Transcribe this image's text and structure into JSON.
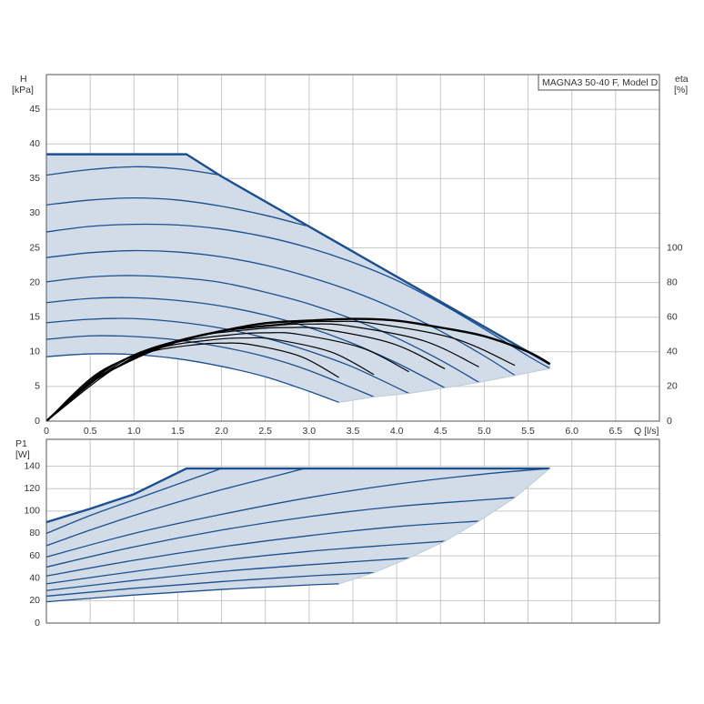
{
  "chart_data": [
    {
      "type": "line",
      "title": "MAGNA3 50-40 F, Model D",
      "y_label": "H",
      "y_unit": "[kPa]",
      "y2_label": "eta",
      "y2_unit": "[%]",
      "x_label": "Q [l/s]",
      "xlim": [
        0,
        7
      ],
      "xticks": [
        0,
        0.5,
        {
          "value": 1,
          "label": "1.0"
        },
        1.5,
        {
          "value": 2,
          "label": "2.0"
        },
        2.5,
        {
          "value": 3,
          "label": "3.0"
        },
        3.5,
        {
          "value": 4,
          "label": "4.0"
        },
        4.5,
        {
          "value": 5,
          "label": "5.0"
        },
        5.5,
        {
          "value": 6,
          "label": "6.0"
        },
        6.5
      ],
      "ylim": [
        0,
        50
      ],
      "yticks": [
        0,
        5,
        10,
        15,
        20,
        25,
        30,
        35,
        40,
        45
      ],
      "y2lim": [
        0,
        200
      ],
      "y2ticks": [
        0,
        20,
        40,
        60,
        80,
        100
      ],
      "grid": true,
      "fill": "#d2dce8",
      "series": [
        {
          "color": "#1b4f8f",
          "x": [
            0,
            1.6,
            2.0,
            5.75
          ],
          "values": [
            38.5,
            38.5,
            35.3,
            8.2
          ]
        },
        {
          "color": "#1b4f8f",
          "x": [
            0,
            0.5,
            1,
            1.5,
            1.99
          ],
          "values": [
            35.5,
            36.3,
            36.7,
            36.4,
            35.5
          ]
        },
        {
          "color": "#1b4f8f",
          "x": [
            0,
            0.5,
            1,
            1.5,
            2,
            2.5,
            2.96
          ],
          "values": [
            31.2,
            31.9,
            32.2,
            31.9,
            31.0,
            29.7,
            28.2
          ]
        },
        {
          "color": "#1b4f8f",
          "x": [
            0,
            0.5,
            1,
            1.5,
            2,
            2.5,
            3,
            3.5,
            4,
            4.5,
            5,
            5.5,
            5.75
          ],
          "values": [
            27.3,
            28.1,
            28.4,
            28.3,
            27.7,
            26.6,
            25.0,
            22.9,
            20.3,
            17.0,
            13.3,
            9.4,
            7.6
          ]
        },
        {
          "color": "#1b4f8f",
          "x": [
            0,
            0.5,
            1,
            1.5,
            2,
            2.5,
            3,
            3.5,
            4,
            4.5,
            5,
            5.35
          ],
          "values": [
            23.6,
            24.3,
            24.6,
            24.4,
            23.7,
            22.5,
            20.8,
            18.7,
            16.1,
            13.0,
            9.4,
            6.6
          ]
        },
        {
          "color": "#1b4f8f",
          "x": [
            0,
            0.5,
            1,
            1.5,
            2,
            2.5,
            3,
            3.5,
            4,
            4.5,
            4.94
          ],
          "values": [
            20.1,
            20.8,
            21.0,
            20.7,
            20.0,
            18.6,
            16.9,
            14.7,
            12.0,
            8.8,
            5.6
          ]
        },
        {
          "color": "#1b4f8f",
          "x": [
            0,
            0.5,
            1,
            1.5,
            2,
            2.5,
            3,
            3.5,
            4,
            4.55
          ],
          "values": [
            17.1,
            17.7,
            17.8,
            17.4,
            16.6,
            15.3,
            13.5,
            11.2,
            8.4,
            4.8
          ]
        },
        {
          "color": "#1b4f8f",
          "x": [
            0,
            0.5,
            1,
            1.5,
            2,
            2.5,
            3,
            3.5,
            4.14
          ],
          "values": [
            14.2,
            14.7,
            14.8,
            14.3,
            13.4,
            12.0,
            10.1,
            7.8,
            4.0
          ]
        },
        {
          "color": "#1b4f8f",
          "x": [
            0,
            0.5,
            1,
            1.5,
            2,
            2.5,
            3,
            3.74
          ],
          "values": [
            11.8,
            12.3,
            12.2,
            11.7,
            10.7,
            9.3,
            7.3,
            3.5
          ]
        },
        {
          "color": "#1b4f8f",
          "x": [
            0,
            0.5,
            1,
            1.5,
            2,
            2.5,
            3,
            3.34
          ],
          "values": [
            9.3,
            9.7,
            9.6,
            9.0,
            7.9,
            6.4,
            4.3,
            2.7
          ]
        },
        {
          "color": "#bccadb",
          "x": [
            3.34,
            3.74,
            4.14,
            4.55,
            4.94,
            5.35,
            5.75,
            5.75
          ],
          "values": [
            2.7,
            3.5,
            4.0,
            4.8,
            5.6,
            6.6,
            7.6,
            8.2
          ]
        },
        {
          "color": "#000000",
          "axis": "y2",
          "x": [
            0,
            0.5,
            1,
            1.5,
            2,
            2.5,
            3,
            3.5,
            4,
            4.5,
            5,
            5.5,
            5.75
          ],
          "values": [
            0,
            22,
            36,
            46,
            52,
            56.5,
            58,
            59,
            58,
            54,
            49,
            40,
            33
          ]
        },
        {
          "color": "#000000",
          "axis": "y2",
          "x": [
            0,
            0.93,
            1.86,
            2.79,
            3.26,
            3.72,
            4.65,
            5.35
          ],
          "values": [
            0,
            35.1,
            50.7,
            56.5,
            57.5,
            56.5,
            47.8,
            32.2
          ]
        },
        {
          "color": "#000000",
          "axis": "y2",
          "x": [
            0,
            0.86,
            1.72,
            2.58,
            3.01,
            3.44,
            4.3,
            4.94
          ],
          "values": [
            0,
            34.2,
            49.3,
            55.0,
            56.0,
            55.0,
            46.5,
            31.3
          ]
        },
        {
          "color": "#000000",
          "axis": "y2",
          "x": [
            0,
            0.79,
            1.58,
            2.37,
            2.77,
            3.16,
            3.95,
            4.55
          ],
          "values": [
            0,
            32.9,
            47.6,
            53.1,
            54.0,
            53.1,
            44.8,
            30.2
          ]
        },
        {
          "color": "#000000",
          "axis": "y2",
          "x": [
            0,
            0.72,
            1.44,
            2.16,
            2.52,
            2.88,
            3.6,
            4.14
          ],
          "values": [
            0,
            31.1,
            44.9,
            50.1,
            51.0,
            50.1,
            42.3,
            28.5
          ]
        },
        {
          "color": "#000000",
          "axis": "y2",
          "x": [
            0,
            0.65,
            1.3,
            1.95,
            2.28,
            2.6,
            3.25,
            3.74
          ],
          "values": [
            0,
            29.3,
            42.3,
            47.2,
            48.0,
            47.2,
            39.9,
            26.9
          ]
        },
        {
          "color": "#000000",
          "axis": "y2",
          "x": [
            0,
            0.58,
            1.16,
            1.74,
            2.03,
            2.32,
            2.9,
            3.34
          ],
          "values": [
            0,
            27.5,
            39.7,
            44.3,
            45.0,
            44.3,
            37.4,
            25.2
          ]
        }
      ]
    },
    {
      "type": "line",
      "y_label": "P1",
      "y_unit": "[W]",
      "xlim": [
        0,
        7
      ],
      "xticks": [
        0,
        0.5,
        1,
        1.5,
        2,
        2.5,
        3,
        3.5,
        4,
        4.5,
        5,
        5.5,
        6,
        6.5
      ],
      "show_xtick_labels": false,
      "ylim": [
        0,
        164
      ],
      "yticks": [
        0,
        20,
        40,
        60,
        80,
        100,
        120,
        140
      ],
      "grid": true,
      "fill": "#d2dce8",
      "series": [
        {
          "color": "#1b4f8f",
          "x": [
            0,
            0.5,
            1,
            1.6,
            5.75
          ],
          "values": [
            90,
            102,
            115,
            138,
            138
          ]
        },
        {
          "color": "#1b4f8f",
          "x": [
            0,
            0.5,
            1,
            1.5,
            2
          ],
          "values": [
            80,
            96,
            110,
            124,
            138
          ]
        },
        {
          "color": "#1b4f8f",
          "x": [
            0,
            0.5,
            1,
            1.5,
            2,
            2.5,
            2.95
          ],
          "values": [
            69,
            83,
            96,
            108,
            119,
            129,
            138
          ]
        },
        {
          "color": "#1b4f8f",
          "x": [
            0,
            1,
            2,
            3,
            4,
            5,
            5.75
          ],
          "values": [
            59,
            80,
            97,
            112,
            124,
            133,
            138
          ]
        },
        {
          "color": "#1b4f8f",
          "x": [
            0,
            1,
            2,
            3,
            4,
            5,
            5.35
          ],
          "values": [
            50,
            68,
            83,
            95,
            104,
            110,
            112
          ]
        },
        {
          "color": "#1b4f8f",
          "x": [
            0,
            1,
            2,
            3,
            4,
            4.94
          ],
          "values": [
            42,
            56,
            68,
            78,
            86,
            91
          ]
        },
        {
          "color": "#1b4f8f",
          "x": [
            0,
            1,
            2,
            3,
            4,
            4.55
          ],
          "values": [
            35,
            46,
            56,
            64,
            70,
            73
          ]
        },
        {
          "color": "#1b4f8f",
          "x": [
            0,
            1,
            2,
            3,
            4.14
          ],
          "values": [
            29,
            38,
            46,
            52,
            58
          ]
        },
        {
          "color": "#1b4f8f",
          "x": [
            0,
            1,
            2,
            3,
            3.74
          ],
          "values": [
            24,
            31,
            37,
            42,
            45
          ]
        },
        {
          "color": "#1b4f8f",
          "x": [
            0,
            1,
            2,
            3,
            3.34
          ],
          "values": [
            19,
            25,
            30,
            34,
            35
          ]
        },
        {
          "color": "#bccadb",
          "x": [
            3.34,
            3.74,
            4.14,
            4.55,
            4.94,
            5.35,
            5.75
          ],
          "values": [
            35,
            45,
            58,
            73,
            91,
            112,
            138
          ]
        }
      ]
    }
  ]
}
